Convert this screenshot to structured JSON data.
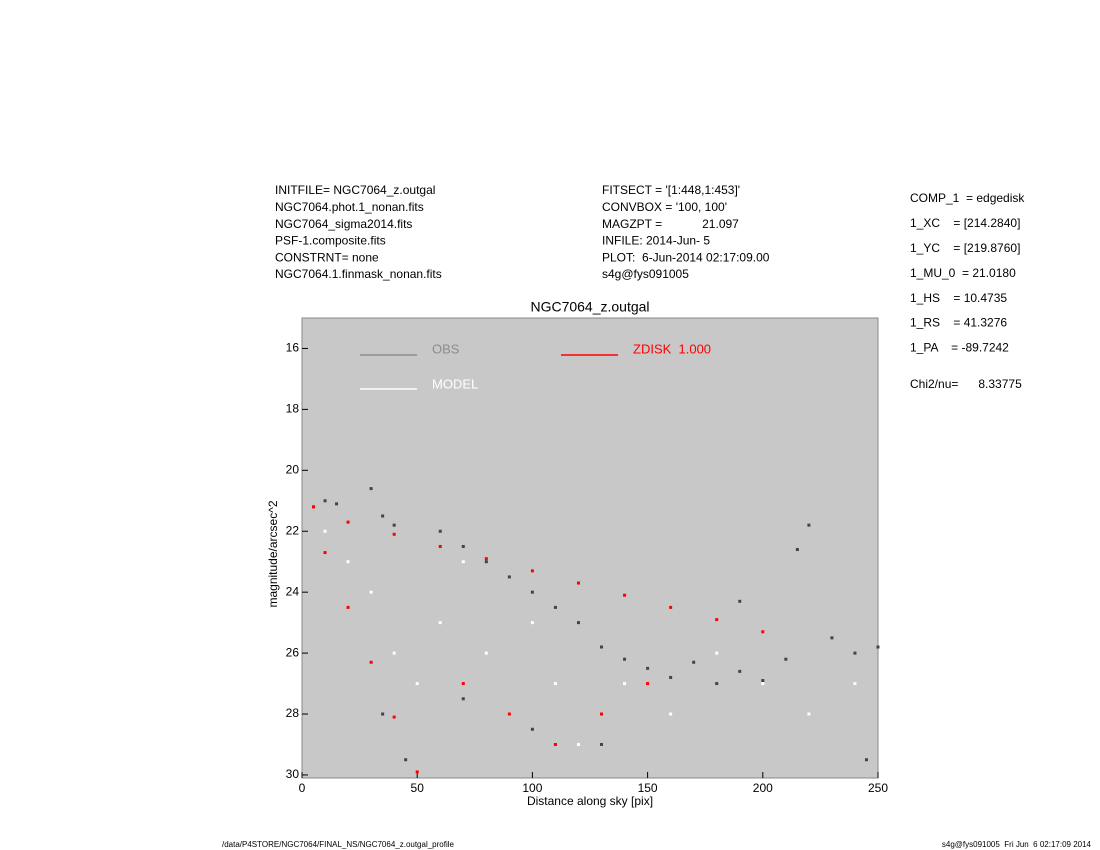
{
  "header": {
    "left": [
      "INITFILE= NGC7064_z.outgal",
      "NGC7064.phot.1_nonan.fits",
      "NGC7064_sigma2014.fits",
      "PSF-1.composite.fits",
      "CONSTRNT= none",
      "NGC7064.1.finmask_nonan.fits"
    ],
    "middle": [
      "FITSECT = '[1:448,1:453]'",
      "CONVBOX = '100, 100'",
      "MAGZPT =            21.097",
      "INFILE: 2014-Jun- 5",
      "PLOT:  6-Jun-2014 02:17:09.00",
      "s4g@fys091005"
    ],
    "right": [
      "COMP_1  = edgedisk",
      "1_XC    = [214.2840]",
      "1_YC    = [219.8760]",
      "1_MU_0  = 21.0180",
      "1_HS    = 10.4735",
      "1_RS    = 41.3276",
      "1_PA    = -89.7242",
      "Chi2/nu=      8.33775"
    ]
  },
  "footer": {
    "left": "/data/P4STORE/NGC7064/FINAL_NS/NGC7064_z.outgal_profile",
    "right": "s4g@fys091005  Fri Jun  6 02:17:09 2014"
  },
  "chart_data": {
    "type": "scatter",
    "title": "NGC7064_z.outgal",
    "x_label": "Distance along sky [pix]",
    "y_label": "magnitude/arcsec^2",
    "xlim": [
      0,
      250
    ],
    "ylim": [
      30.1,
      15
    ],
    "xticks": [
      0,
      50,
      100,
      150,
      200,
      250
    ],
    "yticks": [
      16,
      18,
      20,
      22,
      24,
      26,
      28,
      30
    ],
    "background": "#c8c8c8",
    "series": [
      {
        "name": "OBS",
        "color": "#8c8c8c",
        "point_color": "#444444",
        "x": [
          5,
          10,
          15,
          30,
          35,
          40,
          60,
          70,
          80,
          90,
          100,
          110,
          120,
          130,
          140,
          150,
          160,
          170,
          180,
          190,
          200,
          210,
          220,
          215,
          230,
          240,
          250,
          35,
          45,
          70,
          100,
          130,
          190,
          245
        ],
        "values": [
          21.2,
          21.0,
          21.1,
          20.6,
          21.5,
          21.8,
          22.0,
          22.5,
          23.0,
          23.5,
          24.0,
          24.5,
          25.0,
          25.8,
          26.2,
          26.5,
          26.8,
          26.3,
          27.0,
          26.6,
          26.9,
          26.2,
          21.8,
          22.6,
          25.5,
          26.0,
          25.8,
          28.0,
          29.5,
          27.5,
          28.5,
          29.0,
          24.3,
          29.5
        ]
      },
      {
        "name": "MODEL",
        "color": "#ffffff",
        "point_color": "#ffffff",
        "x": [
          10,
          20,
          30,
          40,
          50,
          60,
          70,
          80,
          90,
          100,
          110,
          120,
          140,
          160,
          180,
          200,
          220,
          240
        ],
        "values": [
          22,
          23,
          24,
          26,
          27,
          25,
          23,
          26,
          28,
          25,
          27,
          29,
          27,
          28,
          26,
          27,
          28,
          27
        ]
      },
      {
        "name": "ZDISK  1.000",
        "color": "#ff0000",
        "point_color": "#ff0000",
        "x": [
          5,
          20,
          40,
          60,
          80,
          100,
          120,
          140,
          160,
          180,
          200,
          10,
          20,
          30,
          40,
          50,
          70,
          90,
          110,
          130,
          150
        ],
        "values": [
          21.2,
          21.7,
          22.1,
          22.5,
          22.9,
          23.3,
          23.7,
          24.1,
          24.5,
          24.9,
          25.3,
          22.7,
          24.5,
          26.3,
          28.1,
          29.9,
          27,
          28,
          29,
          28,
          27
        ]
      }
    ]
  }
}
